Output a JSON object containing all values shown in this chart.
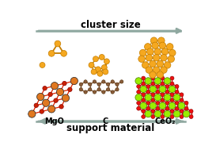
{
  "title_top": "cluster size",
  "title_bottom": "support material",
  "arrow_color": "#8fa8a0",
  "text_color": "#000000",
  "gold_color": "#F5A820",
  "gold_edge": "#C47D00",
  "mgo_label": "MgO",
  "c_label": "C",
  "ceo2_label": "CeO₂",
  "bg_color": "#ffffff",
  "mgo_mg_color": "#E07820",
  "mgo_o_color": "#CC2200",
  "mgo_line_color": "#DD2200",
  "c_atom_color": "#8B5E3C",
  "c_line_color": "#8B5E3C",
  "ceo2_ce_color": "#99EE00",
  "ceo2_o_color": "#EE1010",
  "ceo2_line_color": "#CC1010"
}
